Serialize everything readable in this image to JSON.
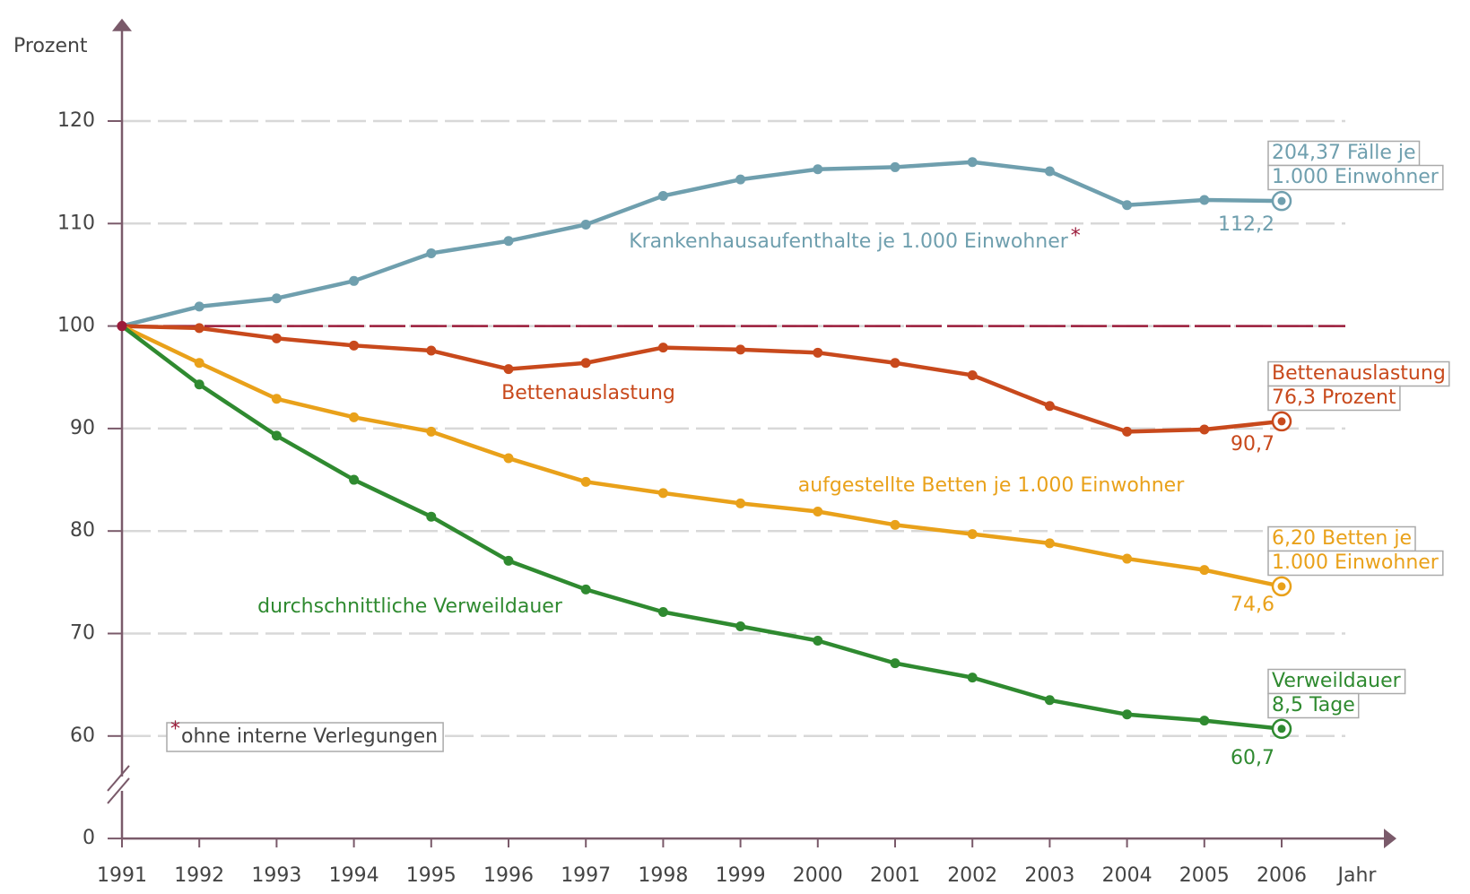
{
  "chart_data": {
    "type": "line",
    "y_label": "Prozent",
    "x_label": "Jahr",
    "categories": [
      "1991",
      "1992",
      "1993",
      "1994",
      "1995",
      "1996",
      "1997",
      "1998",
      "1999",
      "2000",
      "2001",
      "2002",
      "2003",
      "2004",
      "2005",
      "2006"
    ],
    "ylim": [
      0,
      130
    ],
    "yticks": [
      0,
      60,
      70,
      80,
      90,
      100,
      110,
      120
    ],
    "axis_break": [
      0,
      60
    ],
    "grid": true,
    "reference_line": {
      "value": 100,
      "color": "#9b1b3a"
    },
    "series": [
      {
        "name": "Krankenhausaufenthalte je 1.000 Einwohner",
        "name_marker": "*",
        "color": "#6f9fae",
        "values": [
          100,
          101.9,
          102.7,
          104.4,
          107.1,
          108.3,
          109.9,
          112.7,
          114.3,
          115.3,
          115.5,
          116.0,
          115.1,
          111.8,
          112.3,
          112.2
        ],
        "value_labels": [
          null,
          null,
          null,
          null,
          null,
          null,
          null,
          null,
          null,
          null,
          null,
          null,
          null,
          null,
          null,
          "112,2"
        ],
        "note": [
          "204,37 Fälle je",
          "1.000 Einwohner"
        ]
      },
      {
        "name": "Bettenauslastung",
        "color": "#c8491c",
        "values": [
          100,
          99.8,
          98.8,
          98.1,
          97.6,
          95.8,
          96.4,
          97.9,
          97.7,
          97.4,
          96.4,
          95.2,
          92.2,
          89.7,
          89.9,
          90.7
        ],
        "value_labels": [
          null,
          null,
          null,
          null,
          null,
          null,
          null,
          null,
          null,
          null,
          null,
          null,
          null,
          null,
          null,
          "90,7"
        ],
        "note": [
          "Bettenauslastung",
          "76,3 Prozent"
        ]
      },
      {
        "name": "aufgestellte Betten je 1.000 Einwohner",
        "color": "#e9a11a",
        "values": [
          100,
          96.4,
          92.9,
          91.1,
          89.7,
          87.1,
          84.8,
          83.7,
          82.7,
          81.9,
          80.6,
          79.7,
          78.8,
          77.3,
          76.2,
          74.6
        ],
        "value_labels": [
          null,
          null,
          null,
          null,
          null,
          null,
          null,
          null,
          null,
          null,
          null,
          null,
          null,
          null,
          null,
          "74,6"
        ],
        "note": [
          "6,20 Betten je",
          "1.000 Einwohner"
        ]
      },
      {
        "name": "durchschnittliche Verweildauer",
        "color": "#2f8a30",
        "values": [
          100,
          94.3,
          89.3,
          85.0,
          81.4,
          77.1,
          74.3,
          72.1,
          70.7,
          69.3,
          67.1,
          65.7,
          63.5,
          62.1,
          61.5,
          60.7
        ],
        "value_labels": [
          null,
          null,
          null,
          null,
          null,
          null,
          null,
          null,
          null,
          null,
          null,
          null,
          null,
          null,
          null,
          "60,7"
        ],
        "note": [
          "Verweildauer",
          "8,5 Tage"
        ]
      }
    ],
    "footnote": {
      "marker": "*",
      "text": "ohne interne Verlegungen"
    }
  }
}
